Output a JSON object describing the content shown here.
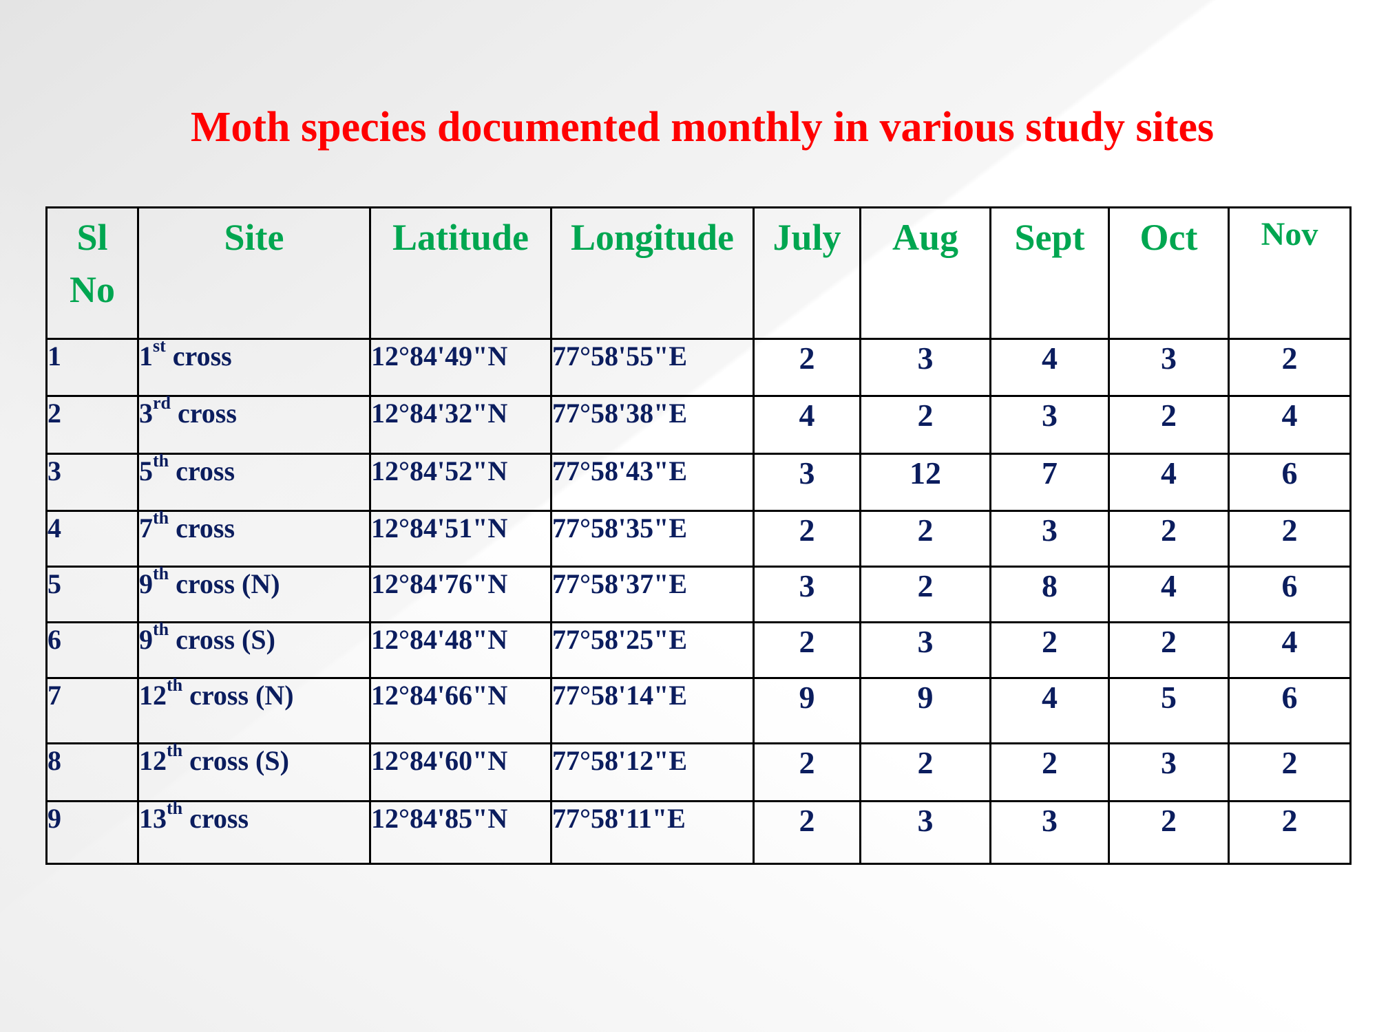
{
  "title": "Moth species documented monthly in various study sites",
  "table": {
    "headers": {
      "sl_no_line1": "Sl",
      "sl_no_line2": "No",
      "site": "Site",
      "latitude": "Latitude",
      "longitude": "Longitude",
      "july": "July",
      "aug": "Aug",
      "sept": "Sept",
      "oct": "Oct",
      "nov": "Nov"
    },
    "rows": [
      {
        "sl": "1",
        "site_num": "1",
        "site_sup": "st",
        "site_rest": " cross",
        "lat": "12°84'49\"N",
        "lon": "77°58'55\"E",
        "july": "2",
        "aug": "3",
        "sept": "4",
        "oct": "3",
        "nov": "2"
      },
      {
        "sl": "2",
        "site_num": "3",
        "site_sup": "rd",
        "site_rest": " cross",
        "lat": "12°84'32\"N",
        "lon": "77°58'38\"E",
        "july": "4",
        "aug": "2",
        "sept": "3",
        "oct": "2",
        "nov": "4"
      },
      {
        "sl": "3",
        "site_num": "5",
        "site_sup": "th",
        "site_rest": " cross",
        "lat": "12°84'52\"N",
        "lon": "77°58'43\"E",
        "july": "3",
        "aug": "12",
        "sept": "7",
        "oct": "4",
        "nov": "6"
      },
      {
        "sl": "4",
        "site_num": "7",
        "site_sup": "th",
        "site_rest": " cross",
        "lat": "12°84'51\"N",
        "lon": "77°58'35\"E",
        "july": "2",
        "aug": "2",
        "sept": "3",
        "oct": "2",
        "nov": "2"
      },
      {
        "sl": "5",
        "site_num": "9",
        "site_sup": "th",
        "site_rest": " cross (N)",
        "lat": "12°84'76\"N",
        "lon": "77°58'37\"E",
        "july": "3",
        "aug": "2",
        "sept": "8",
        "oct": "4",
        "nov": "6"
      },
      {
        "sl": "6",
        "site_num": "9",
        "site_sup": "th",
        "site_rest": " cross (S)",
        "lat": "12°84'48\"N",
        "lon": "77°58'25\"E",
        "july": "2",
        "aug": "3",
        "sept": "2",
        "oct": "2",
        "nov": "4"
      },
      {
        "sl": "7",
        "site_num": "12",
        "site_sup": "th",
        "site_rest": " cross (N)",
        "lat": "12°84'66\"N",
        "lon": "77°58'14\"E",
        "july": "9",
        "aug": "9",
        "sept": "4",
        "oct": "5",
        "nov": "6"
      },
      {
        "sl": "8",
        "site_num": "12",
        "site_sup": "th",
        "site_rest": " cross (S)",
        "lat": "12°84'60\"N",
        "lon": "77°58'12\"E",
        "july": "2",
        "aug": "2",
        "sept": "2",
        "oct": "3",
        "nov": "2"
      },
      {
        "sl": "9",
        "site_num": "13",
        "site_sup": "th",
        "site_rest": " cross",
        "lat": "12°84'85\"N",
        "lon": "77°58'11\"E",
        "july": "2",
        "aug": "3",
        "sept": "3",
        "oct": "2",
        "nov": "2"
      }
    ]
  }
}
